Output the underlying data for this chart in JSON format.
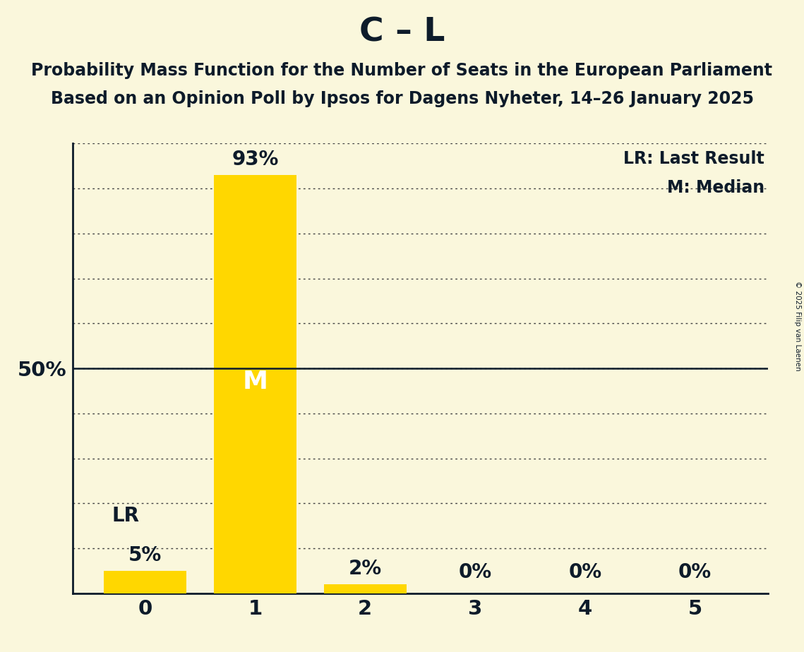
{
  "title": "C – L",
  "subtitle1": "Probability Mass Function for the Number of Seats in the European Parliament",
  "subtitle2": "Based on an Opinion Poll by Ipsos for Dagens Nyheter, 14–26 January 2025",
  "copyright": "© 2025 Filip van Laenen",
  "categories": [
    0,
    1,
    2,
    3,
    4,
    5
  ],
  "values": [
    0.05,
    0.93,
    0.02,
    0.0,
    0.0,
    0.0
  ],
  "bar_color": "#FFD700",
  "background_color": "#FAF7DC",
  "text_color": "#0d1b2a",
  "bar_labels": [
    "5%",
    "93%",
    "2%",
    "0%",
    "0%",
    "0%"
  ],
  "median_bar": 1,
  "lr_bar": 0,
  "lr_label": "LR",
  "median_label": "M",
  "legend_lr": "LR: Last Result",
  "legend_m": "M: Median",
  "ylim": [
    0,
    1.0
  ],
  "yticks": [
    0.0,
    0.1,
    0.2,
    0.3,
    0.4,
    0.5,
    0.6,
    0.7,
    0.8,
    0.9,
    1.0
  ],
  "title_fontsize": 34,
  "subtitle_fontsize": 17,
  "tick_fontsize": 21,
  "bar_label_fontsize": 20,
  "legend_fontsize": 17,
  "annotation_fontsize": 20,
  "median_label_fontsize": 26
}
